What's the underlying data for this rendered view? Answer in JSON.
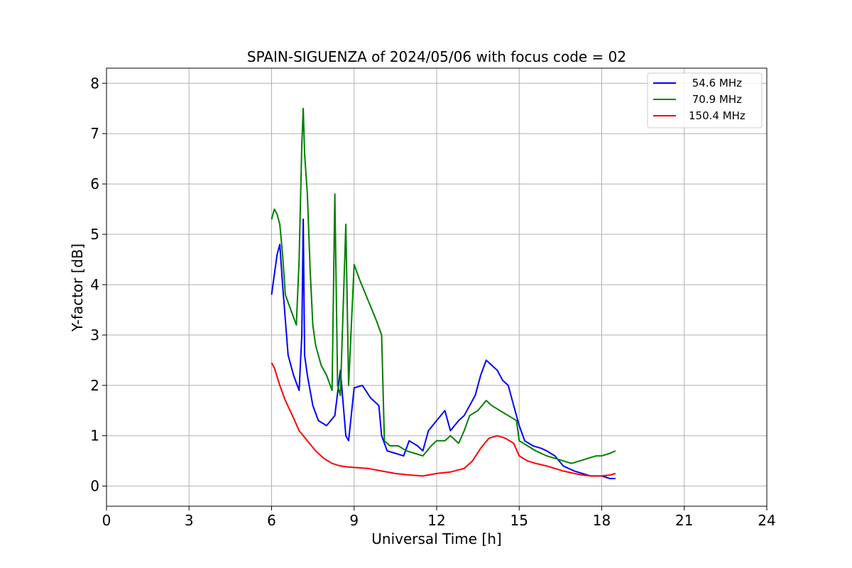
{
  "chart_data": {
    "type": "line",
    "title": "SPAIN-SIGUENZA of 2024/05/06 with focus code = 02",
    "xlabel": "Universal Time [h]",
    "ylabel": "Y-factor [dB]",
    "xlim": [
      0,
      24
    ],
    "ylim": [
      -0.4,
      8.3
    ],
    "x_ticks": [
      0,
      3,
      6,
      9,
      12,
      15,
      18,
      21,
      24
    ],
    "x_tick_labels": [
      "0",
      "3",
      "6",
      "9",
      "12",
      "15",
      "18",
      "21",
      "24"
    ],
    "y_ticks": [
      0,
      1,
      2,
      3,
      4,
      5,
      6,
      7,
      8
    ],
    "y_tick_labels": [
      "0",
      "1",
      "2",
      "3",
      "4",
      "5",
      "6",
      "7",
      "8"
    ],
    "grid": true,
    "legend_position": "top-right",
    "series": [
      {
        "name": " 54.6 MHz",
        "color": "#0000ff",
        "x": [
          6.0,
          6.1,
          6.2,
          6.3,
          6.4,
          6.5,
          6.6,
          6.8,
          7.0,
          7.1,
          7.15,
          7.2,
          7.3,
          7.5,
          7.7,
          8.0,
          8.3,
          8.5,
          8.7,
          8.8,
          9.0,
          9.3,
          9.6,
          9.9,
          10.0,
          10.2,
          10.5,
          10.8,
          11.0,
          11.3,
          11.5,
          11.7,
          12.0,
          12.3,
          12.5,
          12.8,
          13.0,
          13.2,
          13.4,
          13.6,
          13.8,
          14.0,
          14.2,
          14.4,
          14.6,
          14.8,
          15.0,
          15.2,
          15.5,
          15.8,
          16.0,
          16.3,
          16.6,
          17.0,
          17.3,
          17.6,
          18.0,
          18.3,
          18.5
        ],
        "values": [
          3.8,
          4.2,
          4.6,
          4.8,
          4.0,
          3.3,
          2.6,
          2.2,
          1.9,
          3.0,
          5.3,
          2.6,
          2.2,
          1.6,
          1.3,
          1.2,
          1.4,
          2.3,
          1.0,
          0.9,
          1.95,
          2.0,
          1.75,
          1.6,
          1.0,
          0.7,
          0.65,
          0.6,
          0.9,
          0.8,
          0.7,
          1.1,
          1.3,
          1.5,
          1.1,
          1.3,
          1.4,
          1.6,
          1.8,
          2.2,
          2.5,
          2.4,
          2.3,
          2.1,
          2.0,
          1.6,
          1.2,
          0.9,
          0.8,
          0.75,
          0.7,
          0.6,
          0.4,
          0.3,
          0.25,
          0.2,
          0.2,
          0.15,
          0.15
        ]
      },
      {
        "name": " 70.9 MHz",
        "color": "#008000",
        "x": [
          6.0,
          6.1,
          6.2,
          6.3,
          6.4,
          6.5,
          6.7,
          6.9,
          7.0,
          7.1,
          7.15,
          7.2,
          7.3,
          7.4,
          7.5,
          7.6,
          7.8,
          8.0,
          8.2,
          8.3,
          8.4,
          8.5,
          8.7,
          8.8,
          9.0,
          9.2,
          9.5,
          9.8,
          10.0,
          10.1,
          10.3,
          10.6,
          10.9,
          11.2,
          11.5,
          11.8,
          12.0,
          12.3,
          12.5,
          12.8,
          13.0,
          13.2,
          13.5,
          13.8,
          14.0,
          14.3,
          14.6,
          14.9,
          15.0,
          15.3,
          15.6,
          16.0,
          16.3,
          16.6,
          16.9,
          17.2,
          17.5,
          17.8,
          18.0,
          18.3,
          18.5
        ],
        "values": [
          5.3,
          5.5,
          5.4,
          5.2,
          4.6,
          3.8,
          3.5,
          3.2,
          4.5,
          6.8,
          7.5,
          6.6,
          5.8,
          4.3,
          3.2,
          2.8,
          2.4,
          2.2,
          1.9,
          5.8,
          2.0,
          1.8,
          5.2,
          2.0,
          4.4,
          4.1,
          3.7,
          3.3,
          3.0,
          0.9,
          0.8,
          0.8,
          0.7,
          0.65,
          0.6,
          0.8,
          0.9,
          0.9,
          1.0,
          0.85,
          1.1,
          1.4,
          1.5,
          1.7,
          1.6,
          1.5,
          1.4,
          1.3,
          0.9,
          0.8,
          0.7,
          0.6,
          0.55,
          0.5,
          0.45,
          0.5,
          0.55,
          0.6,
          0.6,
          0.65,
          0.7
        ]
      },
      {
        "name": "150.4 MHz",
        "color": "#ff0000",
        "x": [
          6.0,
          6.1,
          6.3,
          6.5,
          6.8,
          7.0,
          7.3,
          7.6,
          7.9,
          8.2,
          8.5,
          8.8,
          9.0,
          9.5,
          10.0,
          10.5,
          11.0,
          11.5,
          12.0,
          12.5,
          13.0,
          13.3,
          13.6,
          13.9,
          14.2,
          14.5,
          14.8,
          15.0,
          15.3,
          15.6,
          16.0,
          16.3,
          16.6,
          17.0,
          17.3,
          17.6,
          18.0,
          18.3,
          18.5
        ],
        "values": [
          2.45,
          2.35,
          2.0,
          1.7,
          1.35,
          1.1,
          0.9,
          0.7,
          0.55,
          0.45,
          0.4,
          0.38,
          0.37,
          0.35,
          0.3,
          0.25,
          0.22,
          0.2,
          0.25,
          0.28,
          0.35,
          0.5,
          0.75,
          0.95,
          1.0,
          0.95,
          0.85,
          0.6,
          0.5,
          0.45,
          0.4,
          0.35,
          0.3,
          0.25,
          0.22,
          0.2,
          0.2,
          0.22,
          0.25
        ]
      }
    ]
  }
}
